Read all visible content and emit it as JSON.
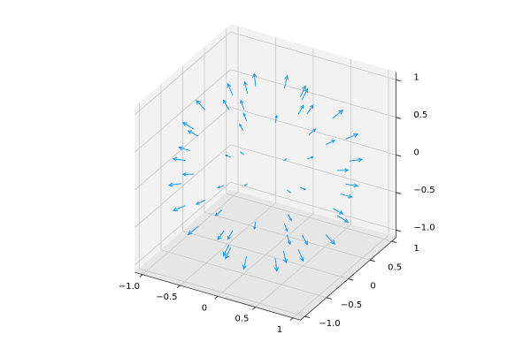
{
  "chart_data": {
    "type": "quiver3d",
    "color": "#1a9bf0",
    "x": [
      0.436,
      0.308,
      0,
      -0.308,
      -0.436,
      -0.308,
      0,
      0.308,
      0.8,
      0.566,
      0,
      -0.566,
      -0.8,
      -0.566,
      0,
      0.566,
      0.954,
      0.675,
      0,
      -0.675,
      -0.954,
      -0.675,
      0,
      0.675,
      1,
      0.707,
      0,
      -0.707,
      -1,
      -0.707,
      0,
      0.707,
      0.954,
      0.675,
      0,
      -0.675,
      -0.954,
      -0.675,
      0,
      0.675,
      0.8,
      0.566,
      0,
      -0.566,
      -0.8,
      -0.566,
      0,
      0.566,
      0.436,
      0.308,
      0,
      -0.308,
      -0.436,
      -0.308,
      0,
      0.308
    ],
    "y": [
      0,
      0.308,
      0.436,
      0.308,
      0,
      -0.308,
      -0.436,
      -0.308,
      0,
      0.566,
      0.8,
      0.566,
      0,
      -0.566,
      -0.8,
      -0.566,
      0,
      0.675,
      0.954,
      0.675,
      0,
      -0.675,
      -0.954,
      -0.675,
      0,
      0.707,
      1,
      0.707,
      0,
      -0.707,
      -1,
      -0.707,
      0,
      0.675,
      0.954,
      0.675,
      0,
      -0.675,
      -0.954,
      -0.675,
      0,
      0.566,
      0.8,
      0.566,
      0,
      -0.566,
      -0.8,
      -0.566,
      0,
      0.308,
      0.436,
      0.308,
      0,
      -0.308,
      -0.436,
      -0.308
    ],
    "z": [
      0.9,
      0.9,
      0.9,
      0.9,
      0.9,
      0.9,
      0.9,
      0.9,
      0.6,
      0.6,
      0.6,
      0.6,
      0.6,
      0.6,
      0.6,
      0.6,
      0.3,
      0.3,
      0.3,
      0.3,
      0.3,
      0.3,
      0.3,
      0.3,
      0,
      0,
      0,
      0,
      0,
      0,
      0,
      0,
      -0.3,
      -0.3,
      -0.3,
      -0.3,
      -0.3,
      -0.3,
      -0.3,
      -0.3,
      -0.6,
      -0.6,
      -0.6,
      -0.6,
      -0.6,
      -0.6,
      -0.6,
      -0.6,
      -0.9,
      -0.9,
      -0.9,
      -0.9,
      -0.9,
      -0.9,
      -0.9,
      -0.9
    ],
    "length": 0.15,
    "xlim": [
      -1.1,
      1.1
    ],
    "ylim": [
      -1.1,
      1.1
    ],
    "zlim": [
      -1.1,
      1.1
    ],
    "xticks": [
      {
        "value": -1,
        "label": "−1.0"
      },
      {
        "value": -0.5,
        "label": "−0.5"
      },
      0.0,
      0.5,
      1.0
    ],
    "yticks": [
      {
        "value": -1,
        "label": "−1.0"
      },
      {
        "value": -0.5,
        "label": "−0.5"
      },
      0.0,
      0.5,
      1.0
    ],
    "zticks": [
      {
        "value": -1,
        "label": "−1.0"
      },
      {
        "value": -0.5,
        "label": "−0.5"
      },
      0.0,
      0.5,
      1.0
    ],
    "grid": true
  }
}
